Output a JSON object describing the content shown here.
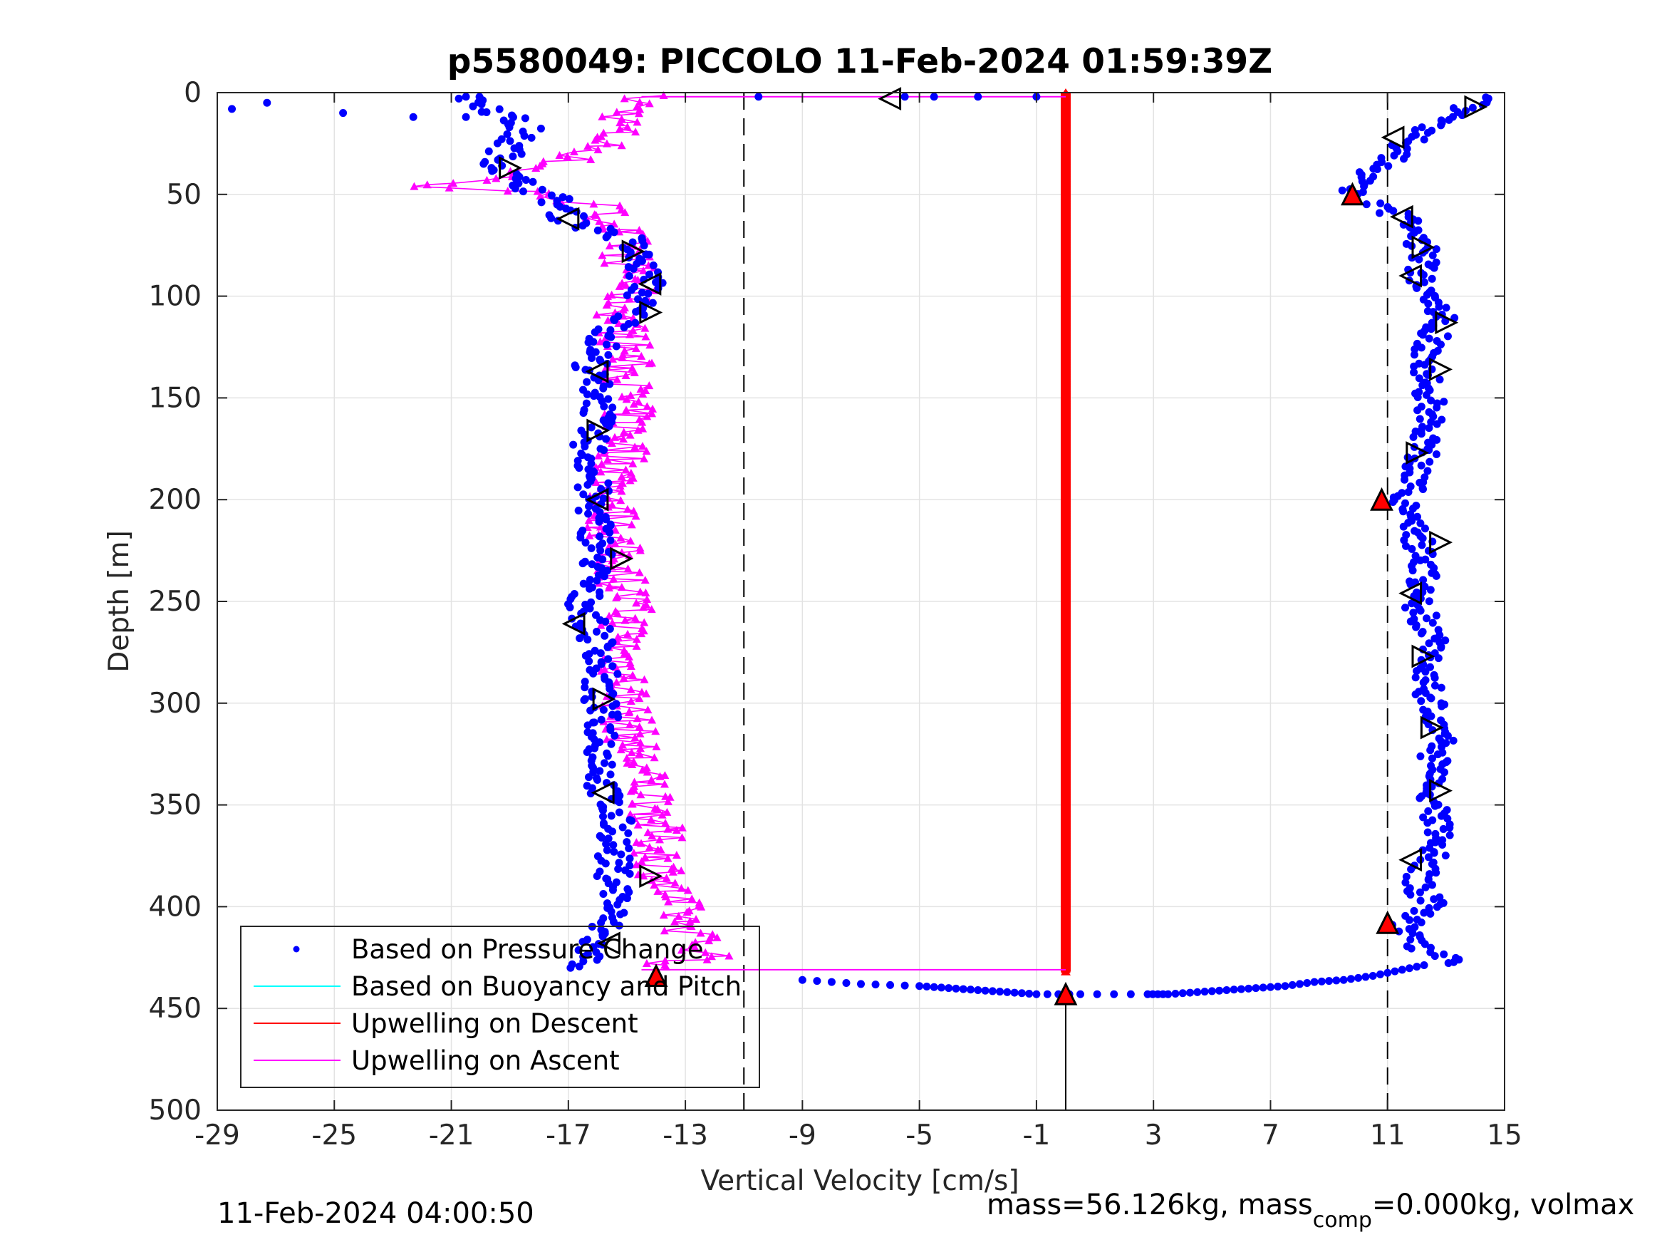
{
  "chart_data": {
    "type": "scatter",
    "title": "p5580049: PICCOLO 11-Feb-2024 01:59:39Z",
    "xlabel": "Vertical Velocity [cm/s]",
    "ylabel": "Depth [m]",
    "xlim": [
      -29,
      15
    ],
    "ylim": [
      0,
      500
    ],
    "y_reversed": true,
    "xticks": [
      "-29",
      "-25",
      "-21",
      "-17",
      "-13",
      "-9",
      "-5",
      "-1",
      "3",
      "7",
      "11",
      "15"
    ],
    "yticks": [
      "0",
      "50",
      "100",
      "150",
      "200",
      "250",
      "300",
      "350",
      "400",
      "450",
      "500"
    ],
    "grid": true,
    "legend_position": "bottom-left",
    "legend": [
      "Based on Pressure Change",
      "Based on Buoyancy and Pitch",
      "Upwelling on Descent",
      "Upwelling on Ascent"
    ],
    "reference_lines_x": [
      -11,
      11
    ],
    "series": [
      {
        "name": "Based on Pressure Change",
        "color": "#0000ff",
        "marker": "dot",
        "descent_profile": {
          "depth": [
            2,
            8,
            18,
            25,
            35,
            42,
            52,
            62,
            72,
            85,
            95,
            108,
            122,
            138,
            152,
            168,
            185,
            200,
            215,
            230,
            248,
            262,
            278,
            295,
            312,
            330,
            345,
            362,
            378,
            395,
            410,
            422,
            430
          ],
          "velocity": [
            -20.5,
            -19.5,
            -18.5,
            -19.0,
            -19.3,
            -19.0,
            -17.5,
            -17.0,
            -15.0,
            -14.5,
            -14.3,
            -14.8,
            -15.8,
            -16.3,
            -15.8,
            -16.3,
            -16.2,
            -16.2,
            -16.0,
            -16.0,
            -16.5,
            -16.2,
            -15.8,
            -16.0,
            -15.8,
            -15.8,
            -15.8,
            -15.3,
            -15.5,
            -15.3,
            -15.8,
            -16.3,
            -16.5
          ]
        },
        "ascent_profile": {
          "depth": [
            428,
            420,
            410,
            400,
            388,
            376,
            362,
            348,
            332,
            316,
            300,
            284,
            268,
            250,
            232,
            218,
            202,
            188,
            172,
            156,
            140,
            125,
            110,
            96,
            80,
            64,
            55,
            50,
            44,
            38,
            30,
            22,
            14,
            6,
            2
          ],
          "velocity": [
            13.5,
            12.0,
            11.5,
            12.5,
            12.0,
            12.5,
            12.8,
            12.6,
            12.5,
            12.8,
            12.5,
            12.3,
            12.5,
            12.0,
            12.3,
            12.0,
            11.5,
            12.0,
            12.3,
            12.5,
            12.3,
            12.4,
            12.9,
            12.0,
            12.3,
            11.8,
            10.5,
            9.8,
            9.8,
            10.5,
            11.5,
            11.8,
            13.0,
            14.0,
            14.5
          ]
        },
        "surface_points": {
          "depth": [
            8,
            5,
            10,
            12,
            2,
            12,
            2,
            2,
            2,
            2,
            2
          ],
          "velocity": [
            -28.5,
            -27.3,
            -24.7,
            -22.3,
            -20.5,
            -20.5,
            -10.5,
            -5.5,
            -4.5,
            -3.0,
            -1.0
          ]
        },
        "bottom_points": {
          "depth": [
            436,
            438,
            439,
            440,
            441,
            442,
            443,
            443,
            443,
            443,
            442,
            441,
            440,
            439,
            437,
            436,
            434,
            431,
            428
          ],
          "velocity": [
            -9.0,
            -7.0,
            -5.0,
            -4.0,
            -3.0,
            -2.0,
            -1.0,
            0.5,
            2.8,
            3.5,
            4.5,
            5.5,
            6.5,
            7.5,
            8.5,
            9.5,
            10.5,
            11.5,
            12.5
          ]
        }
      },
      {
        "name": "Based on Buoyancy and Pitch",
        "color": "#00ffff",
        "marker": "line"
      },
      {
        "name": "Upwelling on Descent",
        "color": "#ff0000",
        "marker": "line",
        "depth_range": [
          0,
          432
        ],
        "velocity": 0
      },
      {
        "name": "Upwelling on Ascent",
        "color": "#ff00ff",
        "marker": "triangle-line",
        "profile": {
          "depth": [
            2,
            8,
            14,
            20,
            28,
            35,
            42,
            46,
            50,
            56,
            62,
            70,
            80,
            90,
            100,
            110,
            125,
            140,
            155,
            170,
            185,
            200,
            215,
            230,
            245,
            260,
            275,
            290,
            305,
            320,
            335,
            350,
            365,
            380,
            395,
            408,
            418,
            425,
            430
          ],
          "velocity": [
            -14.5,
            -14.8,
            -15.2,
            -15.5,
            -16.0,
            -17.5,
            -19.5,
            -22.0,
            -17.5,
            -16.0,
            -15.5,
            -15.2,
            -15.0,
            -14.8,
            -15.0,
            -15.2,
            -15.0,
            -15.0,
            -15.0,
            -15.0,
            -15.2,
            -15.5,
            -15.5,
            -15.3,
            -15.0,
            -15.0,
            -15.2,
            -15.0,
            -15.0,
            -14.8,
            -14.5,
            -14.0,
            -14.0,
            -13.8,
            -13.5,
            -13.0,
            -12.5,
            -12.0,
            -14.5
          ]
        },
        "connector": {
          "depth": [
            2,
            431
          ],
          "velocity": [
            -14.5,
            0
          ]
        }
      },
      {
        "name": "",
        "color": "#000000",
        "marker": "open-triangle",
        "points": [
          {
            "velocity": -6.0,
            "depth": 3,
            "dir": "left"
          },
          {
            "velocity": -19.0,
            "depth": 37,
            "dir": "right"
          },
          {
            "velocity": -17.0,
            "depth": 62,
            "dir": "left"
          },
          {
            "velocity": -14.8,
            "depth": 78,
            "dir": "right"
          },
          {
            "velocity": -14.2,
            "depth": 94,
            "dir": "left"
          },
          {
            "velocity": -14.2,
            "depth": 108,
            "dir": "right"
          },
          {
            "velocity": -16.0,
            "depth": 137,
            "dir": "left"
          },
          {
            "velocity": -16.0,
            "depth": 166,
            "dir": "right"
          },
          {
            "velocity": -16.0,
            "depth": 200,
            "dir": "left"
          },
          {
            "velocity": -15.2,
            "depth": 229,
            "dir": "right"
          },
          {
            "velocity": -16.8,
            "depth": 261,
            "dir": "left"
          },
          {
            "velocity": -15.8,
            "depth": 298,
            "dir": "right"
          },
          {
            "velocity": -15.8,
            "depth": 344,
            "dir": "left"
          },
          {
            "velocity": -14.2,
            "depth": 385,
            "dir": "right"
          },
          {
            "velocity": -15.6,
            "depth": 418,
            "dir": "left"
          },
          {
            "velocity": 14.0,
            "depth": 7,
            "dir": "right"
          },
          {
            "velocity": 11.2,
            "depth": 22,
            "dir": "left"
          },
          {
            "velocity": 11.5,
            "depth": 61,
            "dir": "left"
          },
          {
            "velocity": 12.2,
            "depth": 76,
            "dir": "right"
          },
          {
            "velocity": 11.8,
            "depth": 90,
            "dir": "left"
          },
          {
            "velocity": 13.0,
            "depth": 113,
            "dir": "right"
          },
          {
            "velocity": 12.8,
            "depth": 136,
            "dir": "right"
          },
          {
            "velocity": 12.0,
            "depth": 177,
            "dir": "right"
          },
          {
            "velocity": 12.8,
            "depth": 221,
            "dir": "right"
          },
          {
            "velocity": 11.8,
            "depth": 246,
            "dir": "left"
          },
          {
            "velocity": 12.2,
            "depth": 277,
            "dir": "right"
          },
          {
            "velocity": 12.5,
            "depth": 312,
            "dir": "right"
          },
          {
            "velocity": 12.8,
            "depth": 343,
            "dir": "right"
          },
          {
            "velocity": 11.8,
            "depth": 377,
            "dir": "left"
          }
        ]
      },
      {
        "name": "",
        "color": "#ff0000",
        "marker": "filled-triangle",
        "points": [
          {
            "velocity": 9.8,
            "depth": 50
          },
          {
            "velocity": 10.8,
            "depth": 200
          },
          {
            "velocity": 11.0,
            "depth": 408
          },
          {
            "velocity": -14.0,
            "depth": 434
          },
          {
            "velocity": 0,
            "depth": 443
          }
        ]
      }
    ],
    "bottom_marker_line": {
      "velocity": 0,
      "depth_range": [
        443,
        500
      ]
    }
  },
  "footer": {
    "timestamp": "11-Feb-2024 04:00:50",
    "mass_text": "mass=56.126kg, mass",
    "mass_sub": "comp",
    "mass_text_after": "=0.000kg, volmax"
  }
}
